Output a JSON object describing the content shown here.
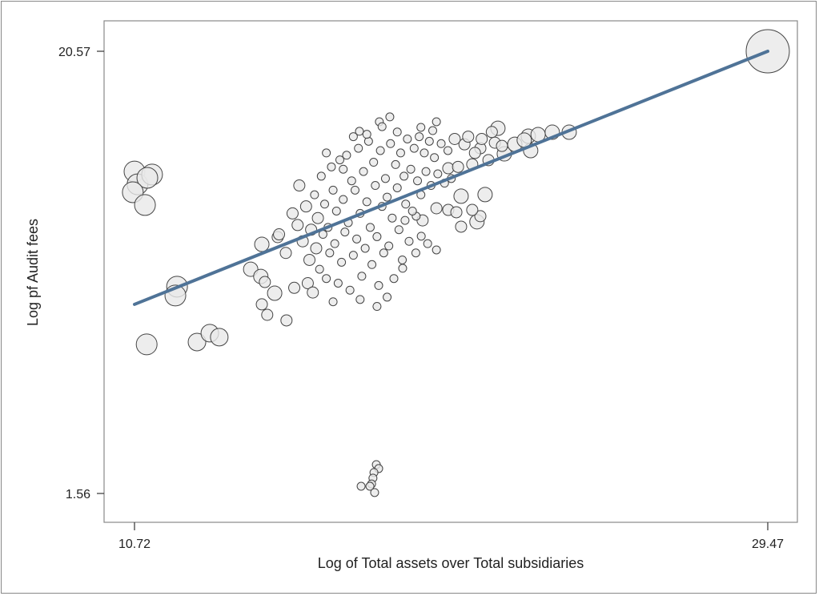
{
  "chart_data": {
    "type": "scatter",
    "xlabel": "Log of Total assets over Total subsidiaries",
    "ylabel": "Log pf Audit fees",
    "xlim": [
      10.72,
      29.47
    ],
    "ylim": [
      1.56,
      20.57
    ],
    "xticks": [
      "10.72",
      "29.47"
    ],
    "yticks": [
      "20.57",
      "1.56"
    ],
    "grid": false,
    "legend": "none",
    "colors": {
      "marker_fill": "#e8e8e8",
      "marker_stroke": "#444444",
      "fit_line": "#4f7397"
    },
    "fit_line": {
      "x": [
        10.72,
        29.47
      ],
      "y": [
        9.69,
        20.57
      ]
    },
    "point_fields": [
      "x",
      "y",
      "size"
    ],
    "points": [
      [
        10.72,
        15.4,
        5
      ],
      [
        10.81,
        14.85,
        5
      ],
      [
        11.24,
        15.27,
        5
      ],
      [
        11.1,
        15.13,
        5
      ],
      [
        10.67,
        14.51,
        5
      ],
      [
        11.03,
        13.96,
        5
      ],
      [
        11.98,
        10.45,
        5
      ],
      [
        11.93,
        10.07,
        5
      ],
      [
        11.08,
        7.97,
        5
      ],
      [
        12.57,
        8.07,
        4
      ],
      [
        12.95,
        8.45,
        4
      ],
      [
        13.23,
        8.28,
        4
      ],
      [
        29.47,
        20.57,
        12
      ],
      [
        17.88,
        2.8,
        1
      ],
      [
        17.95,
        2.63,
        1
      ],
      [
        17.81,
        2.46,
        1
      ],
      [
        17.78,
        2.22,
        1
      ],
      [
        17.74,
        1.97,
        1
      ],
      [
        17.43,
        1.87,
        1
      ],
      [
        17.69,
        1.87,
        1
      ],
      [
        17.83,
        1.6,
        1
      ],
      [
        14.49,
        12.27,
        3
      ],
      [
        14.96,
        12.58,
        2
      ],
      [
        14.16,
        11.2,
        3
      ],
      [
        14.46,
        10.89,
        3
      ],
      [
        14.49,
        9.69,
        2
      ],
      [
        14.65,
        9.24,
        2
      ],
      [
        15.22,
        9.0,
        2
      ],
      [
        14.87,
        10.17,
        3
      ],
      [
        14.58,
        10.65,
        2
      ],
      [
        18.28,
        17.75,
        1
      ],
      [
        17.97,
        17.54,
        1
      ],
      [
        18.05,
        17.33,
        1
      ],
      [
        17.38,
        17.13,
        1
      ],
      [
        19.66,
        17.54,
        1
      ],
      [
        19.55,
        17.16,
        1
      ],
      [
        21.48,
        17.26,
        3
      ],
      [
        22.38,
        16.92,
        3
      ],
      [
        22.67,
        16.99,
        3
      ],
      [
        23.09,
        17.09,
        3
      ],
      [
        23.59,
        17.09,
        3
      ],
      [
        22.45,
        16.3,
        3
      ],
      [
        21.67,
        16.16,
        3
      ],
      [
        20.96,
        16.4,
        2
      ],
      [
        20.49,
        16.57,
        2
      ],
      [
        21.2,
        15.89,
        2
      ],
      [
        20.72,
        15.71,
        2
      ],
      [
        20.01,
        15.54,
        2
      ],
      [
        21.98,
        16.57,
        3
      ],
      [
        22.26,
        16.75,
        3
      ],
      [
        21.39,
        16.64,
        2
      ],
      [
        20.39,
        14.34,
        3
      ],
      [
        21.1,
        14.41,
        3
      ],
      [
        20.86,
        13.24,
        3
      ],
      [
        20.39,
        13.03,
        2
      ],
      [
        20.96,
        13.48,
        2
      ],
      [
        20.01,
        13.75,
        2
      ],
      [
        19.66,
        13.82,
        2
      ],
      [
        20.25,
        13.65,
        2
      ],
      [
        20.72,
        13.75,
        2
      ],
      [
        19.25,
        13.3,
        2
      ],
      [
        19.66,
        12.03,
        1
      ],
      [
        19.21,
        12.62,
        1
      ],
      [
        19.06,
        13.48,
        1
      ],
      [
        18.73,
        13.3,
        1
      ],
      [
        18.66,
        11.24,
        1
      ],
      [
        15.4,
        13.6,
        2
      ],
      [
        15.55,
        13.1,
        2
      ],
      [
        15.7,
        12.4,
        2
      ],
      [
        15.8,
        13.9,
        2
      ],
      [
        15.9,
        11.6,
        2
      ],
      [
        15.95,
        12.9,
        2
      ],
      [
        16.05,
        14.4,
        1
      ],
      [
        16.1,
        12.1,
        2
      ],
      [
        16.15,
        13.4,
        2
      ],
      [
        16.2,
        11.2,
        1
      ],
      [
        16.25,
        15.2,
        1
      ],
      [
        16.3,
        12.7,
        1
      ],
      [
        16.35,
        14.0,
        1
      ],
      [
        16.4,
        10.8,
        1
      ],
      [
        16.45,
        13.0,
        1
      ],
      [
        16.5,
        11.9,
        1
      ],
      [
        16.55,
        15.6,
        1
      ],
      [
        16.6,
        14.6,
        1
      ],
      [
        16.65,
        12.3,
        1
      ],
      [
        16.7,
        13.7,
        1
      ],
      [
        16.75,
        10.6,
        1
      ],
      [
        16.8,
        15.9,
        1
      ],
      [
        16.85,
        11.5,
        1
      ],
      [
        16.9,
        14.2,
        1
      ],
      [
        16.95,
        12.8,
        1
      ],
      [
        17.0,
        16.1,
        1
      ],
      [
        17.05,
        13.2,
        1
      ],
      [
        17.1,
        10.3,
        1
      ],
      [
        17.15,
        15.0,
        1
      ],
      [
        17.2,
        11.8,
        1
      ],
      [
        17.25,
        14.6,
        1
      ],
      [
        17.3,
        12.5,
        1
      ],
      [
        17.35,
        16.4,
        1
      ],
      [
        17.4,
        13.6,
        1
      ],
      [
        17.45,
        10.9,
        1
      ],
      [
        17.5,
        15.4,
        1
      ],
      [
        17.55,
        12.1,
        1
      ],
      [
        17.6,
        14.1,
        1
      ],
      [
        17.65,
        16.7,
        1
      ],
      [
        17.7,
        13.0,
        1
      ],
      [
        17.75,
        11.4,
        1
      ],
      [
        17.8,
        15.8,
        1
      ],
      [
        17.85,
        14.8,
        1
      ],
      [
        17.9,
        12.6,
        1
      ],
      [
        17.95,
        10.5,
        1
      ],
      [
        18.0,
        16.3,
        1
      ],
      [
        18.05,
        13.9,
        1
      ],
      [
        18.1,
        11.9,
        1
      ],
      [
        18.15,
        15.1,
        1
      ],
      [
        18.2,
        14.3,
        1
      ],
      [
        18.25,
        12.2,
        1
      ],
      [
        18.3,
        16.6,
        1
      ],
      [
        18.35,
        13.4,
        1
      ],
      [
        18.4,
        10.8,
        1
      ],
      [
        18.45,
        15.7,
        1
      ],
      [
        18.5,
        14.7,
        1
      ],
      [
        18.55,
        12.9,
        1
      ],
      [
        18.6,
        16.2,
        1
      ],
      [
        18.65,
        11.6,
        1
      ],
      [
        18.7,
        15.2,
        1
      ],
      [
        18.75,
        14.0,
        1
      ],
      [
        18.8,
        16.8,
        1
      ],
      [
        18.85,
        12.4,
        1
      ],
      [
        18.9,
        15.5,
        1
      ],
      [
        18.95,
        13.7,
        1
      ],
      [
        19.0,
        16.4,
        1
      ],
      [
        19.05,
        11.9,
        1
      ],
      [
        19.1,
        15.0,
        1
      ],
      [
        19.15,
        16.9,
        1
      ],
      [
        19.2,
        14.4,
        1
      ],
      [
        19.3,
        16.2,
        1
      ],
      [
        19.35,
        15.4,
        1
      ],
      [
        19.4,
        12.3,
        1
      ],
      [
        19.45,
        16.7,
        1
      ],
      [
        19.5,
        14.8,
        1
      ],
      [
        19.6,
        16.0,
        1
      ],
      [
        19.7,
        15.3,
        1
      ],
      [
        19.8,
        16.6,
        1
      ],
      [
        19.9,
        14.9,
        1
      ],
      [
        20.0,
        16.3,
        1
      ],
      [
        20.1,
        15.1,
        1
      ],
      [
        20.2,
        16.8,
        2
      ],
      [
        20.3,
        15.6,
        2
      ],
      [
        20.6,
        16.9,
        2
      ],
      [
        20.8,
        16.2,
        2
      ],
      [
        21.0,
        16.8,
        2
      ],
      [
        21.3,
        17.1,
        2
      ],
      [
        21.6,
        16.5,
        2
      ],
      [
        15.6,
        14.8,
        2
      ],
      [
        15.2,
        11.9,
        2
      ],
      [
        15.0,
        12.7,
        2
      ],
      [
        15.85,
        10.6,
        2
      ],
      [
        16.0,
        10.2,
        2
      ],
      [
        15.45,
        10.4,
        2
      ],
      [
        16.6,
        9.8,
        1
      ],
      [
        17.4,
        9.9,
        1
      ],
      [
        17.9,
        9.6,
        1
      ],
      [
        18.2,
        10.0,
        1
      ],
      [
        16.9,
        15.5,
        1
      ],
      [
        17.2,
        16.9,
        1
      ],
      [
        16.4,
        16.2,
        1
      ],
      [
        17.6,
        17.0,
        1
      ],
      [
        18.5,
        17.1,
        1
      ],
      [
        19.2,
        17.3,
        1
      ]
    ]
  }
}
